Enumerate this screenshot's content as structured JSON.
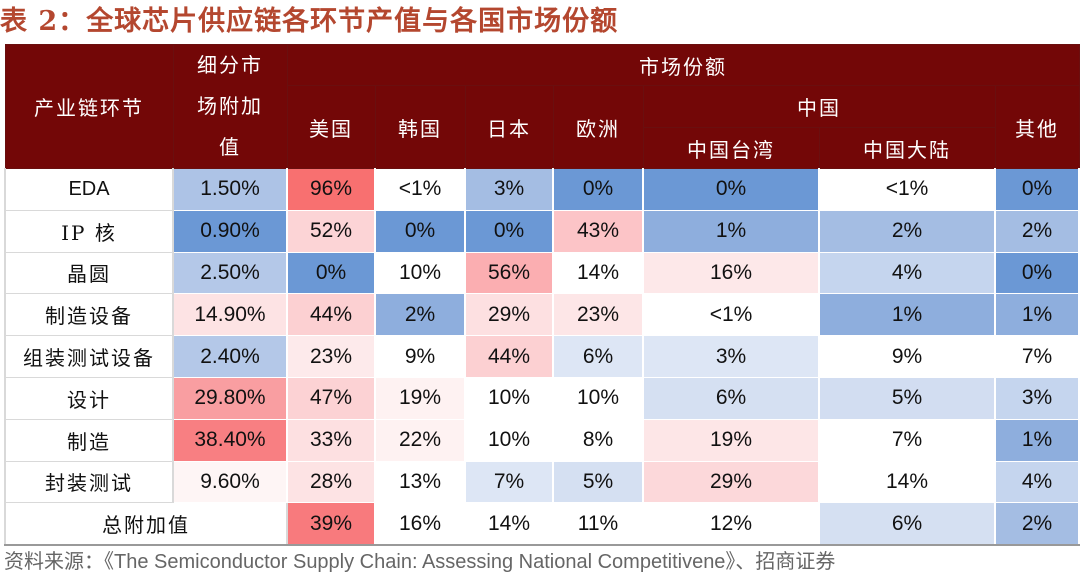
{
  "title": {
    "label": "表 2：",
    "text": "全球芯片供应链各环节产值与各国市场份额"
  },
  "header": {
    "segment": "产业链环节",
    "value_added": [
      "细分市",
      "场附加",
      "值"
    ],
    "market_share": "市场份额",
    "usa": "美国",
    "korea": "韩国",
    "japan": "日本",
    "europe": "欧洲",
    "china": "中国",
    "taiwan": "中国台湾",
    "mainland": "中国大陆",
    "others": "其他"
  },
  "rows": [
    {
      "name": "EDA",
      "cells": [
        {
          "v": "1.50%",
          "c": "#adc3e6"
        },
        {
          "v": "96%",
          "c": "#f87070"
        },
        {
          "v": "<1%",
          "c": "#ffffff"
        },
        {
          "v": "3%",
          "c": "#a4bde3"
        },
        {
          "v": "0%",
          "c": "#6b98d5"
        },
        {
          "v": "0%",
          "c": "#6b98d5"
        },
        {
          "v": "<1%",
          "c": "#ffffff"
        },
        {
          "v": "0%",
          "c": "#6b98d5"
        }
      ]
    },
    {
      "name": "IP 核",
      "cells": [
        {
          "v": "0.90%",
          "c": "#6b98d5"
        },
        {
          "v": "52%",
          "c": "#fcd4d6"
        },
        {
          "v": "0%",
          "c": "#6b98d5"
        },
        {
          "v": "0%",
          "c": "#6b98d5"
        },
        {
          "v": "43%",
          "c": "#fcc4c7"
        },
        {
          "v": "1%",
          "c": "#8eaedd"
        },
        {
          "v": "2%",
          "c": "#a4bde3"
        },
        {
          "v": "2%",
          "c": "#a4bde3"
        }
      ]
    },
    {
      "name": "晶圆",
      "cells": [
        {
          "v": "2.50%",
          "c": "#b4c8e8"
        },
        {
          "v": "0%",
          "c": "#6b98d5"
        },
        {
          "v": "10%",
          "c": "#ffffff"
        },
        {
          "v": "56%",
          "c": "#fbaeb1"
        },
        {
          "v": "14%",
          "c": "#ffffff"
        },
        {
          "v": "16%",
          "c": "#fde8e9"
        },
        {
          "v": "4%",
          "c": "#c5d5ee"
        },
        {
          "v": "0%",
          "c": "#6b98d5"
        }
      ]
    },
    {
      "name": "制造设备",
      "cells": [
        {
          "v": "14.90%",
          "c": "#fde3e4"
        },
        {
          "v": "44%",
          "c": "#fcd0d2"
        },
        {
          "v": "2%",
          "c": "#8eaedd"
        },
        {
          "v": "29%",
          "c": "#fde0e1"
        },
        {
          "v": "23%",
          "c": "#fde6e7"
        },
        {
          "v": "<1%",
          "c": "#ffffff"
        },
        {
          "v": "1%",
          "c": "#8eaedd"
        },
        {
          "v": "1%",
          "c": "#8eaedd"
        }
      ]
    },
    {
      "name": "组装测试设备",
      "cells": [
        {
          "v": "2.40%",
          "c": "#b4c8e8"
        },
        {
          "v": "23%",
          "c": "#fdeaeb"
        },
        {
          "v": "9%",
          "c": "#ffffff"
        },
        {
          "v": "44%",
          "c": "#fcd0d2"
        },
        {
          "v": "6%",
          "c": "#dde6f5"
        },
        {
          "v": "3%",
          "c": "#dde6f5"
        },
        {
          "v": "9%",
          "c": "#ffffff"
        },
        {
          "v": "7%",
          "c": "#ffffff"
        }
      ]
    },
    {
      "name": "设计",
      "cells": [
        {
          "v": "29.80%",
          "c": "#f99ea1"
        },
        {
          "v": "47%",
          "c": "#fcd2d4"
        },
        {
          "v": "19%",
          "c": "#fef2f2"
        },
        {
          "v": "10%",
          "c": "#ffffff"
        },
        {
          "v": "10%",
          "c": "#ffffff"
        },
        {
          "v": "6%",
          "c": "#d5e0f2"
        },
        {
          "v": "5%",
          "c": "#d2ddf1"
        },
        {
          "v": "3%",
          "c": "#c5d5ee"
        }
      ]
    },
    {
      "name": "制造",
      "cells": [
        {
          "v": "38.40%",
          "c": "#f87f82"
        },
        {
          "v": "33%",
          "c": "#fde0e1"
        },
        {
          "v": "22%",
          "c": "#fef2f2"
        },
        {
          "v": "10%",
          "c": "#ffffff"
        },
        {
          "v": "8%",
          "c": "#ffffff"
        },
        {
          "v": "19%",
          "c": "#fde6e7"
        },
        {
          "v": "7%",
          "c": "#ffffff"
        },
        {
          "v": "1%",
          "c": "#8eaedd"
        }
      ]
    },
    {
      "name": "封装测试",
      "cells": [
        {
          "v": "9.60%",
          "c": "#fef5f5"
        },
        {
          "v": "28%",
          "c": "#fde3e4"
        },
        {
          "v": "13%",
          "c": "#ffffff"
        },
        {
          "v": "7%",
          "c": "#dde6f5"
        },
        {
          "v": "5%",
          "c": "#d5e0f2"
        },
        {
          "v": "29%",
          "c": "#fcd8da"
        },
        {
          "v": "14%",
          "c": "#ffffff"
        },
        {
          "v": "4%",
          "c": "#c5d5ee"
        }
      ]
    }
  ],
  "total": {
    "name": "总附加值",
    "cells": [
      {
        "v": "39%",
        "c": "#f87a7d"
      },
      {
        "v": "16%",
        "c": "#ffffff"
      },
      {
        "v": "14%",
        "c": "#ffffff"
      },
      {
        "v": "11%",
        "c": "#ffffff"
      },
      {
        "v": "12%",
        "c": "#ffffff"
      },
      {
        "v": "6%",
        "c": "#d5e0f2"
      },
      {
        "v": "2%",
        "c": "#a4bde3"
      }
    ]
  },
  "source": "资料来源：《The Semiconductor Supply Chain: Assessing National Competitivene》、招商证券"
}
